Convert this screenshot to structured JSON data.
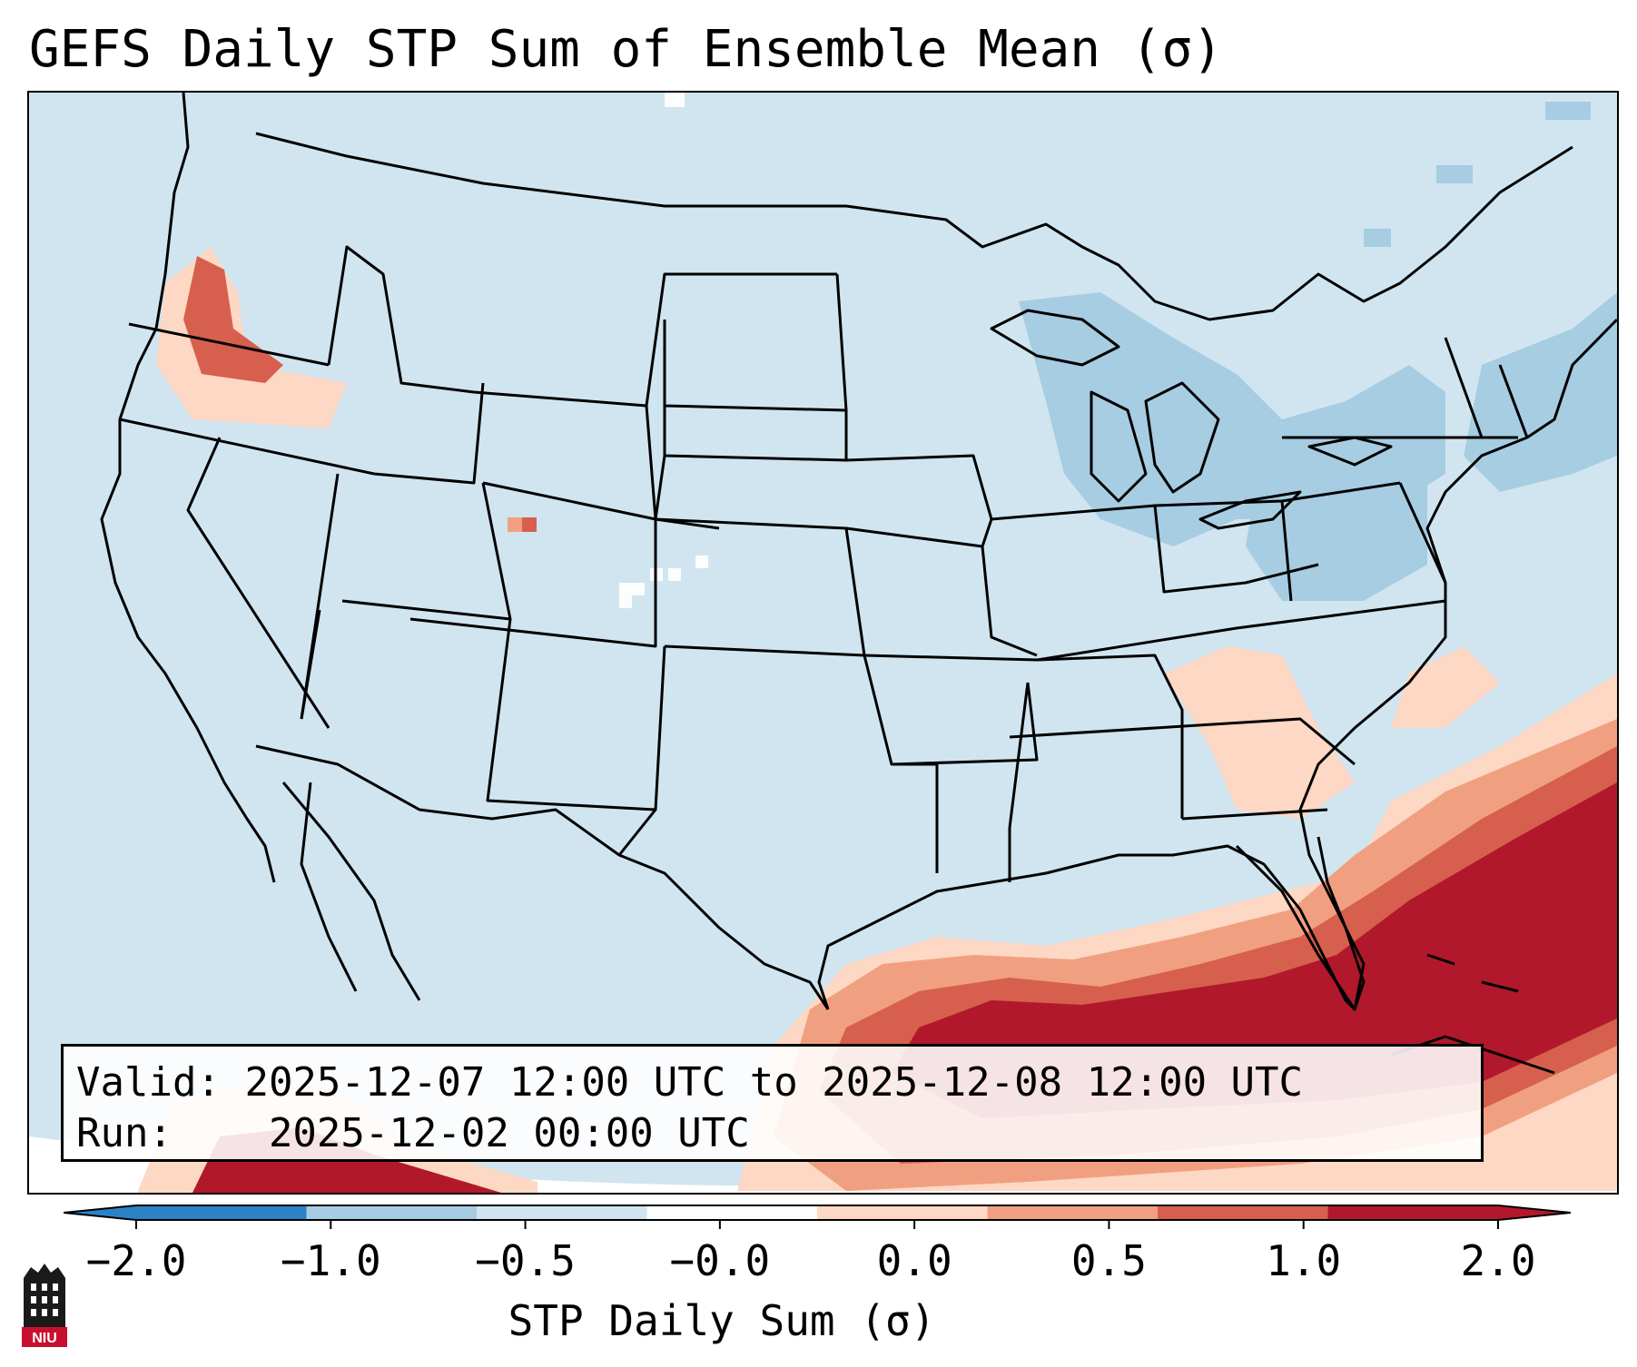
{
  "title": "GEFS Daily STP Sum of Ensemble Mean (σ)",
  "info": {
    "valid_prefix": "Valid:",
    "valid_range": "2025-12-07 12:00 UTC to 2025-12-08 12:00 UTC",
    "run_prefix": "Run:",
    "run_time": "2025-12-02 00:00 UTC"
  },
  "colorbar": {
    "label": "STP Daily Sum (σ)",
    "ticks": [
      "−2.0",
      "−1.0",
      "−0.5",
      "−0.0",
      "0.0",
      "0.5",
      "1.0",
      "2.0"
    ],
    "colors": [
      "#2b83c6",
      "#6aaed6",
      "#a6cde2",
      "#d1e5f0",
      "#fbfdfe",
      "#fdd8c4",
      "#f0a080",
      "#d6604d",
      "#b2182b"
    ],
    "extend": "both"
  },
  "map": {
    "projection": "Lambert Conformal (CONUS)",
    "background": "#d1e5f0",
    "logo_text": "NIU"
  }
}
